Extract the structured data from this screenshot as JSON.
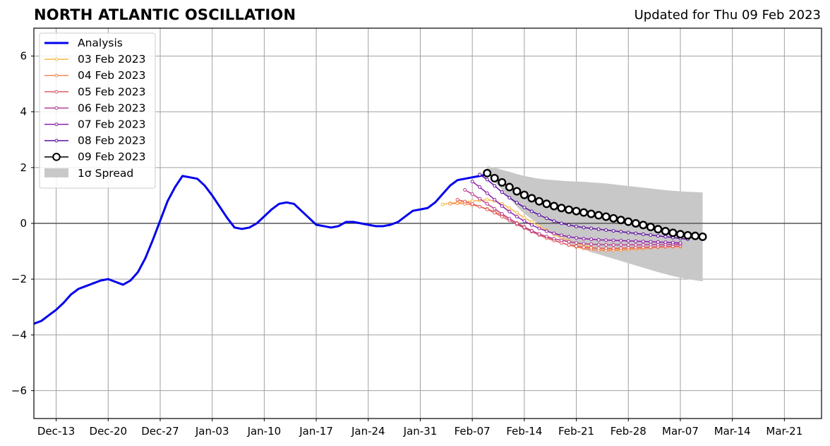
{
  "title": "NORTH ATLANTIC OSCILLATION",
  "subtitle": "Updated for Thu 09 Feb 2023",
  "chart_data": {
    "type": "line",
    "title": "NORTH ATLANTIC OSCILLATION",
    "subtitle": "Updated for Thu 09 Feb 2023",
    "xlabel": "",
    "ylabel": "",
    "xlim": [
      "2022-12-10",
      "2023-03-26"
    ],
    "ylim": [
      -7,
      7
    ],
    "xticks": [
      "2022-12-13",
      "2022-12-20",
      "2022-12-27",
      "2023-01-03",
      "2023-01-10",
      "2023-01-17",
      "2023-01-24",
      "2023-01-31",
      "2023-02-07",
      "2023-02-14",
      "2023-02-21",
      "2023-02-28",
      "2023-03-07",
      "2023-03-14",
      "2023-03-21"
    ],
    "xtick_labels": [
      "Dec-13",
      "Dec-20",
      "Dec-27",
      "Jan-03",
      "Jan-10",
      "Jan-17",
      "Jan-24",
      "Jan-31",
      "Feb-07",
      "Feb-14",
      "Feb-21",
      "Feb-28",
      "Mar-07",
      "Mar-14",
      "Mar-21"
    ],
    "yticks": [
      -6,
      -4,
      -2,
      0,
      2,
      4,
      6
    ],
    "ytick_labels": [
      "−6",
      "−4",
      "−2",
      "0",
      "2",
      "4",
      "6"
    ],
    "grid": true,
    "legend_position": "top-left",
    "zero_line_color": "#555555",
    "series": [
      {
        "name": "Analysis",
        "color": "#0000ee",
        "marker": "none",
        "width": 3,
        "x": [
          "2022-12-10",
          "2022-12-11",
          "2022-12-12",
          "2022-12-13",
          "2022-12-14",
          "2022-12-15",
          "2022-12-16",
          "2022-12-17",
          "2022-12-18",
          "2022-12-19",
          "2022-12-20",
          "2022-12-21",
          "2022-12-22",
          "2022-12-23",
          "2022-12-24",
          "2022-12-25",
          "2022-12-26",
          "2022-12-27",
          "2022-12-28",
          "2022-12-29",
          "2022-12-30",
          "2022-12-31",
          "2023-01-01",
          "2023-01-02",
          "2023-01-03",
          "2023-01-04",
          "2023-01-05",
          "2023-01-06",
          "2023-01-07",
          "2023-01-08",
          "2023-01-09",
          "2023-01-10",
          "2023-01-11",
          "2023-01-12",
          "2023-01-13",
          "2023-01-14",
          "2023-01-15",
          "2023-01-16",
          "2023-01-17",
          "2023-01-18",
          "2023-01-19",
          "2023-01-20",
          "2023-01-21",
          "2023-01-22",
          "2023-01-23",
          "2023-01-24",
          "2023-01-25",
          "2023-01-26",
          "2023-01-27",
          "2023-01-28",
          "2023-01-29",
          "2023-01-30",
          "2023-01-31",
          "2023-02-01",
          "2023-02-02",
          "2023-02-03",
          "2023-02-04",
          "2023-02-05",
          "2023-02-06",
          "2023-02-07",
          "2023-02-08",
          "2023-02-09"
        ],
        "y": [
          -3.6,
          -3.5,
          -3.3,
          -3.1,
          -2.85,
          -2.55,
          -2.35,
          -2.25,
          -2.15,
          -2.05,
          -2.0,
          -2.1,
          -2.2,
          -2.05,
          -1.75,
          -1.25,
          -0.6,
          0.1,
          0.8,
          1.3,
          1.7,
          1.65,
          1.6,
          1.35,
          1.0,
          0.6,
          0.2,
          -0.15,
          -0.2,
          -0.15,
          0.0,
          0.25,
          0.5,
          0.7,
          0.75,
          0.7,
          0.45,
          0.2,
          -0.05,
          -0.1,
          -0.15,
          -0.1,
          0.05,
          0.05,
          0.0,
          -0.05,
          -0.1,
          -0.1,
          -0.05,
          0.05,
          0.25,
          0.45,
          0.5,
          0.55,
          0.75,
          1.05,
          1.35,
          1.55,
          1.6,
          1.65,
          1.7,
          1.75
        ]
      },
      {
        "name": "03 Feb 2023",
        "color": "#f9b942",
        "marker": "small",
        "width": 1.5,
        "start": "2023-02-03",
        "y": [
          0.68,
          0.72,
          0.75,
          0.78,
          0.8,
          0.82,
          0.85,
          0.8,
          0.7,
          0.55,
          0.38,
          0.2,
          0.05,
          -0.1,
          -0.25,
          -0.4,
          -0.52,
          -0.63,
          -0.72,
          -0.8,
          -0.86,
          -0.9,
          -0.92,
          -0.93,
          -0.93,
          -0.92,
          -0.9,
          -0.88,
          -0.86,
          -0.85,
          -0.84,
          -0.83,
          -0.82
        ]
      },
      {
        "name": "04 Feb 2023",
        "color": "#f58c4e",
        "marker": "small",
        "width": 1.5,
        "start": "2023-02-04",
        "y": [
          0.7,
          0.72,
          0.7,
          0.66,
          0.6,
          0.52,
          0.42,
          0.3,
          0.16,
          0.02,
          -0.12,
          -0.26,
          -0.38,
          -0.5,
          -0.6,
          -0.7,
          -0.78,
          -0.85,
          -0.9,
          -0.94,
          -0.96,
          -0.97,
          -0.97,
          -0.96,
          -0.94,
          -0.92,
          -0.9,
          -0.88,
          -0.86,
          -0.85,
          -0.84,
          -0.84
        ]
      },
      {
        "name": "05 Feb 2023",
        "color": "#e05a66",
        "marker": "small",
        "width": 1.5,
        "start": "2023-02-05",
        "y": [
          0.85,
          0.78,
          0.7,
          0.6,
          0.5,
          0.38,
          0.24,
          0.1,
          -0.04,
          -0.17,
          -0.3,
          -0.42,
          -0.53,
          -0.62,
          -0.7,
          -0.77,
          -0.82,
          -0.86,
          -0.88,
          -0.89,
          -0.9,
          -0.9,
          -0.89,
          -0.88,
          -0.87,
          -0.86,
          -0.85,
          -0.84,
          -0.83,
          -0.82,
          -0.81
        ]
      },
      {
        "name": "06 Feb 2023",
        "color": "#b83e92",
        "marker": "small",
        "width": 1.5,
        "start": "2023-02-06",
        "y": [
          1.2,
          1.05,
          0.88,
          0.7,
          0.52,
          0.34,
          0.17,
          0.0,
          -0.14,
          -0.27,
          -0.38,
          -0.47,
          -0.55,
          -0.61,
          -0.66,
          -0.7,
          -0.73,
          -0.75,
          -0.76,
          -0.77,
          -0.77,
          -0.77,
          -0.77,
          -0.77,
          -0.77,
          -0.76,
          -0.76,
          -0.76,
          -0.75,
          -0.75
        ]
      },
      {
        "name": "07 Feb 2023",
        "color": "#8a1dab",
        "marker": "small",
        "width": 1.5,
        "start": "2023-02-07",
        "y": [
          1.5,
          1.3,
          1.08,
          0.85,
          0.62,
          0.42,
          0.24,
          0.08,
          -0.06,
          -0.18,
          -0.28,
          -0.36,
          -0.43,
          -0.48,
          -0.52,
          -0.55,
          -0.57,
          -0.59,
          -0.6,
          -0.61,
          -0.62,
          -0.63,
          -0.64,
          -0.65,
          -0.66,
          -0.67,
          -0.68,
          -0.69,
          -0.7
        ]
      },
      {
        "name": "08 Feb 2023",
        "color": "#5a0c9e",
        "marker": "small",
        "width": 1.5,
        "start": "2023-02-08",
        "y": [
          1.75,
          1.57,
          1.35,
          1.12,
          0.92,
          0.74,
          0.57,
          0.43,
          0.3,
          0.18,
          0.08,
          0.0,
          -0.06,
          -0.11,
          -0.15,
          -0.18,
          -0.21,
          -0.24,
          -0.27,
          -0.3,
          -0.33,
          -0.36,
          -0.39,
          -0.42,
          -0.45,
          -0.48,
          -0.51,
          -0.54,
          -0.57
        ]
      },
      {
        "name": "09 Feb 2023",
        "color": "#000000",
        "marker": "large",
        "width": 1.5,
        "start": "2023-02-09",
        "y": [
          1.8,
          1.62,
          1.47,
          1.3,
          1.15,
          1.02,
          0.9,
          0.79,
          0.7,
          0.62,
          0.55,
          0.49,
          0.44,
          0.39,
          0.34,
          0.29,
          0.24,
          0.18,
          0.12,
          0.06,
          0.0,
          -0.06,
          -0.13,
          -0.21,
          -0.28,
          -0.34,
          -0.39,
          -0.43,
          -0.45,
          -0.48
        ]
      }
    ],
    "spread": {
      "name": "1σ Spread",
      "color": "#c8c8c8",
      "start": "2023-02-09",
      "upper": [
        2.05,
        2.0,
        1.92,
        1.85,
        1.77,
        1.7,
        1.65,
        1.6,
        1.57,
        1.55,
        1.53,
        1.51,
        1.5,
        1.49,
        1.47,
        1.45,
        1.43,
        1.4,
        1.37,
        1.34,
        1.31,
        1.28,
        1.25,
        1.22,
        1.19,
        1.17,
        1.15,
        1.13,
        1.12,
        1.11
      ],
      "lower": [
        1.8,
        1.5,
        1.2,
        0.9,
        0.6,
        0.35,
        0.15,
        -0.05,
        -0.25,
        -0.42,
        -0.58,
        -0.72,
        -0.84,
        -0.94,
        -1.03,
        -1.11,
        -1.19,
        -1.27,
        -1.35,
        -1.43,
        -1.51,
        -1.59,
        -1.67,
        -1.75,
        -1.82,
        -1.89,
        -1.95,
        -2.0,
        -2.04,
        -2.08
      ]
    }
  }
}
